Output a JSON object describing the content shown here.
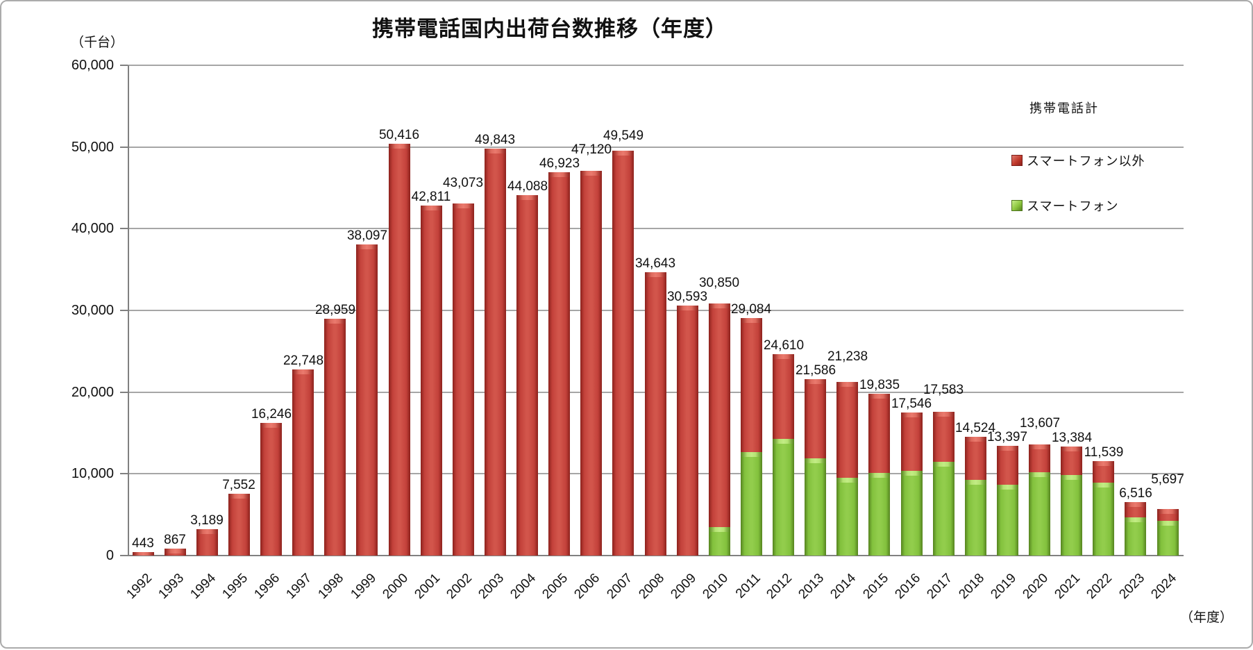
{
  "title": "携帯電話国内出荷台数推移（年度）",
  "y_axis": {
    "unit_label": "（千台）",
    "min": 0,
    "max": 60000,
    "step": 10000,
    "tick_labels": [
      "60,000",
      "50,000",
      "40,000",
      "30,000",
      "20,000",
      "10,000",
      "0"
    ]
  },
  "x_axis": {
    "unit_label": "（年度）",
    "categories": [
      "1992",
      "1993",
      "1994",
      "1995",
      "1996",
      "1997",
      "1998",
      "1999",
      "2000",
      "2001",
      "2002",
      "2003",
      "2004",
      "2005",
      "2006",
      "2007",
      "2008",
      "2009",
      "2010",
      "2011",
      "2012",
      "2013",
      "2014",
      "2015",
      "2016",
      "2017",
      "2018",
      "2019",
      "2020",
      "2021",
      "2022",
      "2023",
      "2024"
    ]
  },
  "legend": {
    "total_label": "携帯電話計",
    "items": [
      {
        "label": "スマートフォン以外",
        "color": "#C0392B",
        "swatch": "red-beveled-square"
      },
      {
        "label": "スマートフォン",
        "color": "#8DC63F",
        "swatch": "green-beveled-square"
      }
    ]
  },
  "colors": {
    "non_smartphone_bar": "#C0392B",
    "smartphone_bar": "#8DC63F",
    "gridline": "#A6A6A6",
    "axis": "#808080",
    "text": "#111111"
  },
  "chart_data": {
    "type": "bar",
    "stacked": true,
    "title": "携帯電話国内出荷台数推移（年度）",
    "xlabel": "（年度）",
    "ylabel": "（千台）",
    "ylim": [
      0,
      60000
    ],
    "grid": "horizontal",
    "legend_position": "inside-right",
    "categories": [
      1992,
      1993,
      1994,
      1995,
      1996,
      1997,
      1998,
      1999,
      2000,
      2001,
      2002,
      2003,
      2004,
      2005,
      2006,
      2007,
      2008,
      2009,
      2010,
      2011,
      2012,
      2013,
      2014,
      2015,
      2016,
      2017,
      2018,
      2019,
      2020,
      2021,
      2022,
      2023,
      2024
    ],
    "totals": [
      443,
      867,
      3189,
      7552,
      16246,
      22748,
      28959,
      38097,
      50416,
      42811,
      43073,
      49843,
      44088,
      46923,
      47120,
      49549,
      34643,
      30593,
      30850,
      29084,
      24610,
      21586,
      21238,
      19835,
      17546,
      17583,
      14524,
      13397,
      13607,
      13384,
      11539,
      6516,
      5697
    ],
    "total_labels": [
      "443",
      "867",
      "3,189",
      "7,552",
      "16,246",
      "22,748",
      "28,959",
      "38,097",
      "50,416",
      "42,811",
      "43,073",
      "49,843",
      "44,088",
      "46,923",
      "47,120",
      "49,549",
      "34,643",
      "30,593",
      "30,850",
      "29,084",
      "24,610",
      "21,586",
      "21,238",
      "19,835",
      "17,546",
      "17,583",
      "14,524",
      "13,397",
      "13,607",
      "13,384",
      "11,539",
      "6,516",
      "5,697"
    ],
    "series": [
      {
        "name": "スマートフォン以外",
        "color": "#C0392B",
        "values": [
          443,
          867,
          3189,
          7552,
          16246,
          22748,
          28959,
          38097,
          50416,
          42811,
          43073,
          49843,
          44088,
          46923,
          47120,
          49549,
          34643,
          30593,
          27350,
          16384,
          10310,
          9686,
          11738,
          9735,
          7146,
          6083,
          5224,
          4697,
          3407,
          3484,
          2639,
          1816,
          1447
        ]
      },
      {
        "name": "スマートフォン",
        "color": "#8DC63F",
        "values": [
          0,
          0,
          0,
          0,
          0,
          0,
          0,
          0,
          0,
          0,
          0,
          0,
          0,
          0,
          0,
          0,
          0,
          0,
          3500,
          12700,
          14300,
          11900,
          9500,
          10100,
          10400,
          11500,
          9300,
          8700,
          10200,
          9900,
          8900,
          4700,
          4250
        ],
        "values_estimated_from_bar_heights": true
      }
    ]
  }
}
